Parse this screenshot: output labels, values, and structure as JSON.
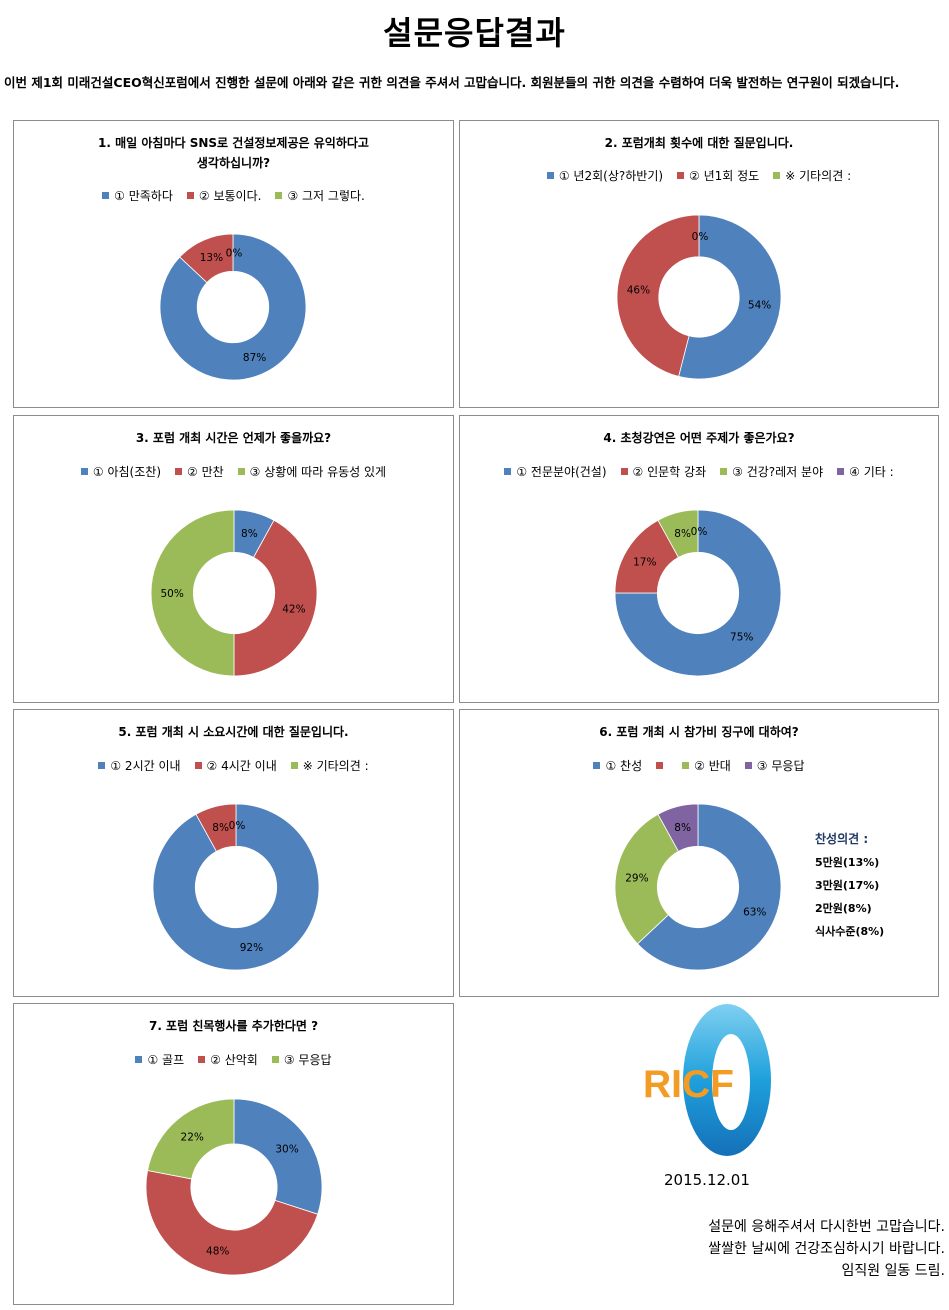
{
  "page": {
    "title": "설문응답결과",
    "intro": "이번 제1회 미래건설CEO혁신포럼에서 진행한 설문에 아래와 같은 귀한 의견을 주셔서 고맙습니다. 회원분들의 귀한 의견을 수렴하여 더욱 발전하는 연구원이 되겠습니다.",
    "date": "2015.12.01",
    "closing": [
      "설문에 응해주셔서 다시한번 고맙습니다.",
      "쌀쌀한 날씨에 건강조심하시기 바랍니다.",
      "임직원 일동 드림."
    ],
    "logo_text": "RICF"
  },
  "colors": {
    "blue": "#4f81bd",
    "red": "#c0504d",
    "green": "#9bbb59",
    "purple": "#8064a2"
  },
  "opinion": {
    "heading": "찬성의견 :",
    "items": [
      "5만원(13%)",
      "3만원(17%)",
      "2만원(8%)",
      "식사수준(8%)"
    ]
  },
  "chart_data": [
    {
      "type": "pie",
      "title": "1. 매일 아침마다 SNS로 건설정보제공은 유익하다고 생각하십니까?",
      "title_lines": [
        "1. 매일 아침마다 SNS로 건설정보제공은 유익하다고",
        "생각하십니까?"
      ],
      "categories": [
        "① 만족하다",
        "② 보통이다.",
        "③ 그저 그렇다."
      ],
      "values": [
        87,
        13,
        0
      ],
      "labels": [
        "87%",
        "13%",
        "0%"
      ],
      "colors": [
        "#4f81bd",
        "#c0504d",
        "#9bbb59"
      ]
    },
    {
      "type": "pie",
      "title": "2. 포럼개최 횟수에 대한 질문입니다.",
      "categories": [
        "① 년2회(상?하반기)",
        "② 년1회 정도",
        "※ 기타의견 :"
      ],
      "values": [
        54,
        46,
        0
      ],
      "labels": [
        "54%",
        "46%",
        "0%"
      ],
      "colors": [
        "#4f81bd",
        "#c0504d",
        "#9bbb59"
      ]
    },
    {
      "type": "pie",
      "title": "3. 포럼 개최 시간은 언제가 좋을까요?",
      "categories": [
        "① 아침(조찬)",
        "② 만찬",
        "③ 상황에 따라 유동성 있게"
      ],
      "values": [
        8,
        42,
        50
      ],
      "labels": [
        "8%",
        "42%",
        "50%"
      ],
      "colors": [
        "#4f81bd",
        "#c0504d",
        "#9bbb59"
      ]
    },
    {
      "type": "pie",
      "title": "4. 초청강연은 어떤 주제가 좋은가요?",
      "categories": [
        "① 전문분야(건설)",
        "② 인문학 강좌",
        "③ 건강?레저 분야",
        "④ 기타 :"
      ],
      "values": [
        75,
        17,
        8,
        0
      ],
      "labels": [
        "75%",
        "17%",
        "8%",
        "0%"
      ],
      "colors": [
        "#4f81bd",
        "#c0504d",
        "#9bbb59",
        "#8064a2"
      ]
    },
    {
      "type": "pie",
      "title": "5. 포럼 개최 시 소요시간에 대한 질문입니다.",
      "categories": [
        "① 2시간 이내",
        "② 4시간 이내",
        "※ 기타의견 :"
      ],
      "values": [
        92,
        8,
        0
      ],
      "labels": [
        "92%",
        "8%",
        "0%"
      ],
      "colors": [
        "#4f81bd",
        "#c0504d",
        "#9bbb59"
      ]
    },
    {
      "type": "pie",
      "title": "6. 포럼 개최 시 참가비 징구에 대하여?",
      "categories": [
        "① 찬성",
        "",
        "② 반대",
        "③ 무응답"
      ],
      "values": [
        63,
        0,
        29,
        8
      ],
      "labels": [
        "63%",
        "",
        "29%",
        "8%"
      ],
      "colors": [
        "#4f81bd",
        "#c0504d",
        "#9bbb59",
        "#8064a2"
      ]
    },
    {
      "type": "pie",
      "title": "7. 포럼 친목행사를 추가한다면 ?",
      "categories": [
        "① 골프",
        "② 산악회",
        "③ 무응답"
      ],
      "values": [
        30,
        48,
        22
      ],
      "labels": [
        "30%",
        "48%",
        "22%"
      ],
      "colors": [
        "#4f81bd",
        "#c0504d",
        "#9bbb59"
      ]
    }
  ]
}
